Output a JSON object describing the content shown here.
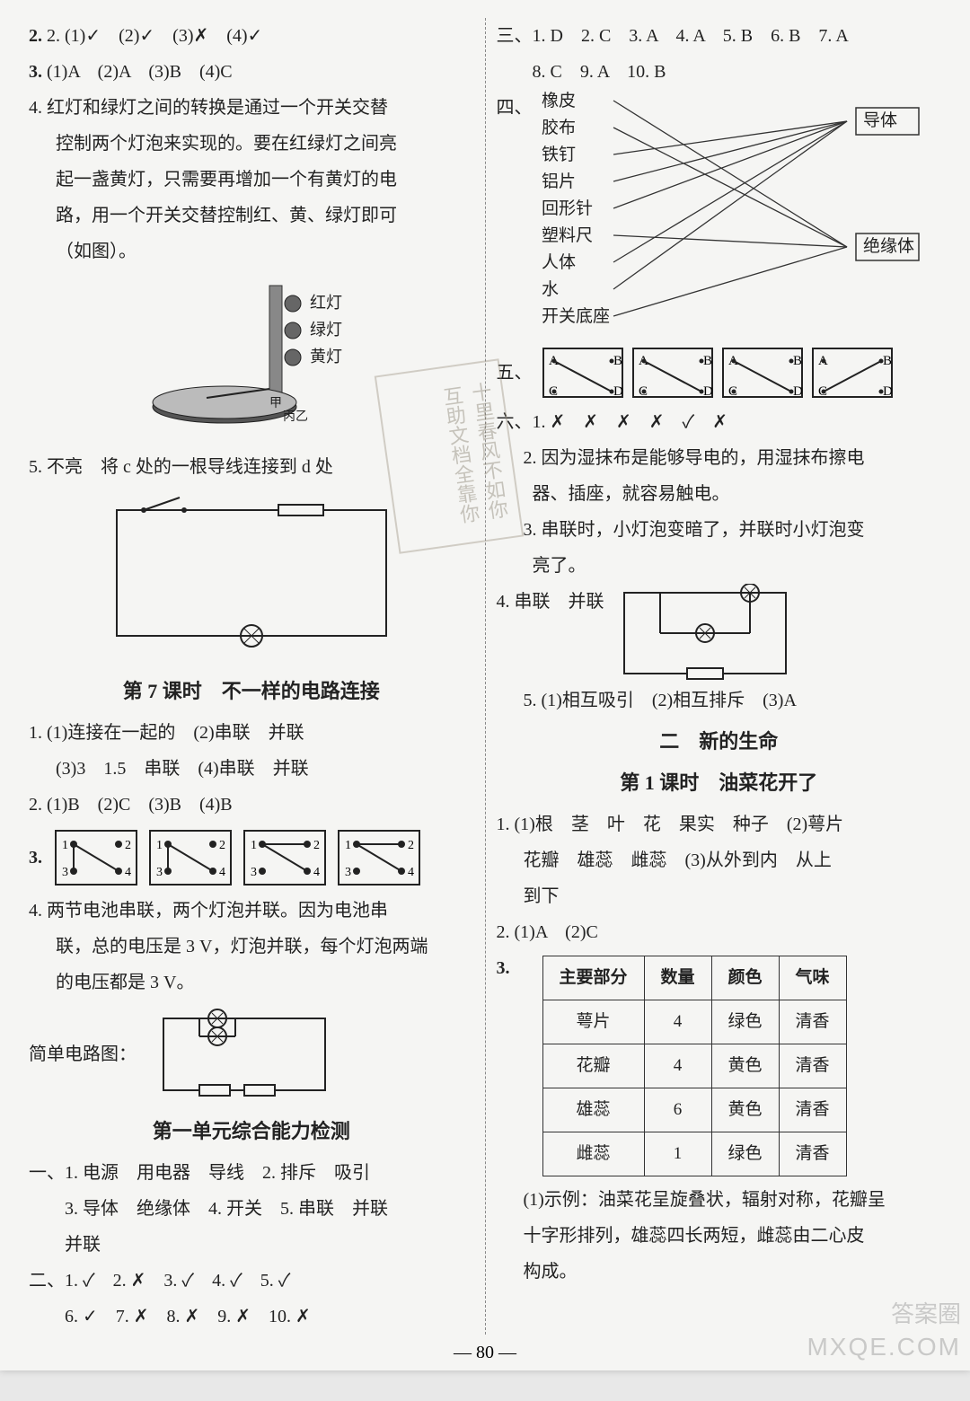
{
  "page_number": "— 80 —",
  "watermark_logo": "答案圈",
  "watermark_url": "MXQE.COM",
  "stamp_text": "十里春风不如你\n互助文档全靠你",
  "left": {
    "q2": "2. (1)✓　(2)✓　(3)✗　(4)✓",
    "q3": "3. (1)A　(2)A　(3)B　(4)C",
    "q4_lines": [
      "4. 红灯和绿灯之间的转换是通过一个开关交替",
      "控制两个灯泡来实现的。要在红绿灯之间亮",
      "起一盏黄灯，只需要再增加一个有黄灯的电",
      "路，用一个开关交替控制红、黄、绿灯即可",
      "（如图）。"
    ],
    "traffic_labels": [
      "红灯",
      "绿灯",
      "黄灯"
    ],
    "q5": "5. 不亮　将 c 处的一根导线连接到 d 处",
    "lesson7_title": "第 7 课时　不一样的电路连接",
    "l7_q1_lines": [
      "1. (1)连接在一起的　(2)串联　并联",
      "(3)3　1.5　串联　(4)串联　并联"
    ],
    "l7_q2": "2. (1)B　(2)C　(3)B　(4)B",
    "l7_q3_label": "3.",
    "l7_q4_lines": [
      "4. 两节电池串联，两个灯泡并联。因为电池串",
      "联，总的电压是 3 V，灯泡并联，每个灯泡两端",
      "的电压都是 3 V。"
    ],
    "circuit_label": "简单电路图：",
    "unit1_title": "第一单元综合能力检测",
    "u1_s1_lines": [
      "一、1. 电源　用电器　导线　2. 排斥　吸引",
      "3. 导体　绝缘体　4. 开关　5. 串联　并联",
      "并联"
    ],
    "u1_s2_lines": [
      "二、1. ✓　2. ✗　3. ✓　4. ✓　5. ✓",
      "6. ✓　7. ✗　8. ✗　9. ✗　10. ✗"
    ]
  },
  "right": {
    "s3_lines": [
      "三、1. D　2. C　3. A　4. A　5. B　6. B　7. A",
      "8. C　9. A　10. B"
    ],
    "s4_label": "四、",
    "matching": {
      "left_items": [
        "橡皮",
        "胶布",
        "铁钉",
        "铝片",
        "回形针",
        "塑料尺",
        "人体",
        "水",
        "开关底座"
      ],
      "right_items": [
        "导体",
        "绝缘体"
      ],
      "edges": [
        [
          0,
          1
        ],
        [
          1,
          1
        ],
        [
          2,
          0
        ],
        [
          3,
          0
        ],
        [
          4,
          0
        ],
        [
          5,
          1
        ],
        [
          6,
          0
        ],
        [
          7,
          0
        ],
        [
          8,
          1
        ]
      ],
      "text_color": "#222",
      "line_color": "#333",
      "box_stroke": "#333"
    },
    "s5_label": "五、",
    "s5_boxes": {
      "labels": [
        "A",
        "B",
        "C",
        "D"
      ],
      "diagonals": [
        [
          0,
          3
        ],
        [
          0,
          3
        ],
        [
          0,
          3
        ],
        [
          1,
          2
        ]
      ]
    },
    "s6_line1": "六、1. ✗　✗　✗　✗　✓　✗",
    "s6_q2_lines": [
      "2. 因为湿抹布是能够导电的，用湿抹布擦电",
      "器、插座，就容易触电。"
    ],
    "s6_q3_lines": [
      "3. 串联时，小灯泡变暗了，并联时小灯泡变",
      "亮了。"
    ],
    "s6_q4": "4. 串联　并联",
    "s6_q5": "5. (1)相互吸引　(2)相互排斥　(3)A",
    "chapter2_title": "二　新的生命",
    "lesson1_title": "第 1 课时　油菜花开了",
    "c2_q1_lines": [
      "1. (1)根　茎　叶　花　果实　种子　(2)萼片",
      "花瓣　雄蕊　雌蕊　(3)从外到内　从上",
      "到下"
    ],
    "c2_q2": "2. (1)A　(2)C",
    "c2_q3_label": "3.",
    "table": {
      "headers": [
        "主要部分",
        "数量",
        "颜色",
        "气味"
      ],
      "rows": [
        [
          "萼片",
          "4",
          "绿色",
          "清香"
        ],
        [
          "花瓣",
          "4",
          "黄色",
          "清香"
        ],
        [
          "雄蕊",
          "6",
          "黄色",
          "清香"
        ],
        [
          "雌蕊",
          "1",
          "绿色",
          "清香"
        ]
      ]
    },
    "c2_q3_note_lines": [
      "(1)示例：油菜花呈旋叠状，辐射对称，花瓣呈",
      "十字形排列，雄蕊四长两短，雌蕊由二心皮",
      "构成。"
    ]
  }
}
